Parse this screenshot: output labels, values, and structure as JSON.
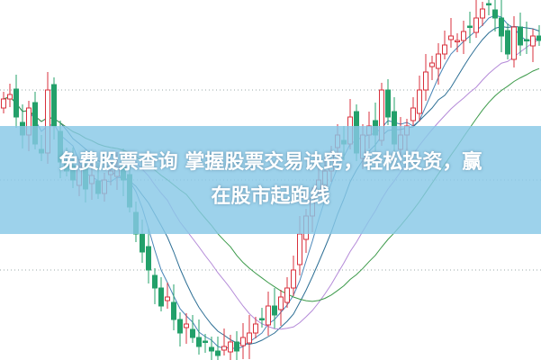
{
  "chart_data": {
    "type": "candlestick",
    "title": "",
    "xlabel": "",
    "ylabel": "",
    "grid": "horizontal dotted",
    "colors": {
      "up": "#d8303c",
      "down": "#23a06a",
      "ma_short": "#4a86b8",
      "ma_mid": "#2d6f95",
      "ma_long": "#3c9a4a",
      "ma_extra": "#b48ad8",
      "banner": "#87c8e6"
    },
    "closes": [
      290,
      295,
      270,
      250,
      280,
      240,
      230,
      300,
      260,
      220,
      210,
      200,
      215,
      190,
      205,
      185,
      200,
      210,
      215,
      200,
      170,
      140,
      120,
      100,
      80,
      60,
      70,
      45,
      30,
      40,
      25,
      15,
      20,
      10,
      5,
      15,
      20,
      10,
      25,
      30,
      40,
      45,
      60,
      50,
      70,
      80,
      100,
      140,
      160,
      180,
      200,
      210,
      230,
      250,
      240,
      270,
      230,
      250,
      260,
      250,
      300,
      270,
      240,
      250,
      260,
      280,
      300,
      320,
      330,
      340,
      350,
      360,
      355,
      365,
      370,
      380,
      390,
      395,
      380,
      360,
      340,
      370,
      350,
      355,
      360,
      355
    ]
  },
  "banner": {
    "line1": "免费股票查询 掌握股票交易诀窍，轻松投资，赢",
    "line2": "在股市起跑线"
  }
}
